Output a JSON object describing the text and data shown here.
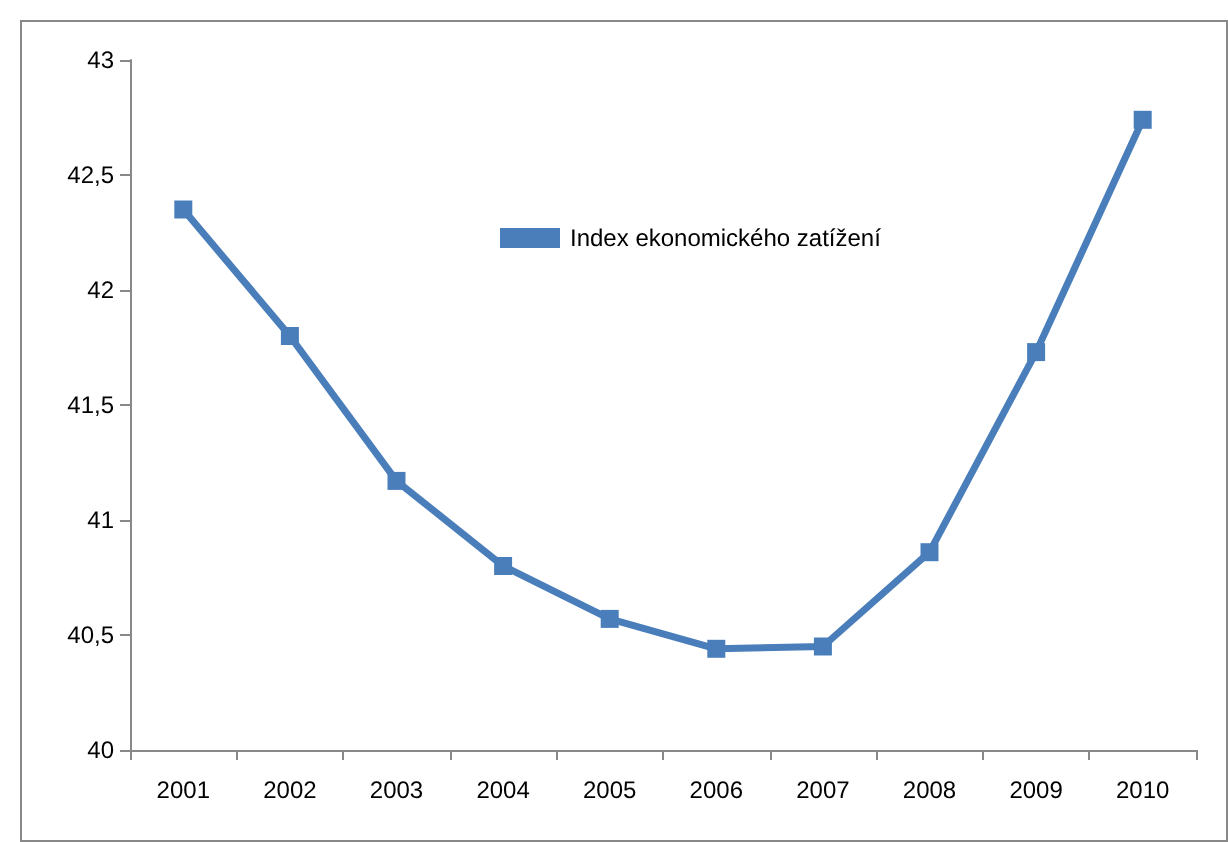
{
  "chart_data": {
    "type": "line",
    "categories": [
      "2001",
      "2002",
      "2003",
      "2004",
      "2005",
      "2006",
      "2007",
      "2008",
      "2009",
      "2010"
    ],
    "series": [
      {
        "name": "Index ekonomického zatížení",
        "color": "#4a7ebb",
        "values": [
          42.35,
          41.8,
          41.17,
          40.8,
          40.57,
          40.44,
          40.45,
          40.86,
          41.73,
          42.74
        ]
      }
    ],
    "ylim": [
      40,
      43
    ],
    "yticks": [
      40,
      {
        "value": 40.5,
        "label": "40,5"
      },
      41,
      {
        "value": 41.5,
        "label": "41,5"
      },
      42,
      {
        "value": 42.5,
        "label": "42,5"
      },
      43
    ],
    "grid": false,
    "legend": "top",
    "marker": "square",
    "line_style": "solid"
  }
}
